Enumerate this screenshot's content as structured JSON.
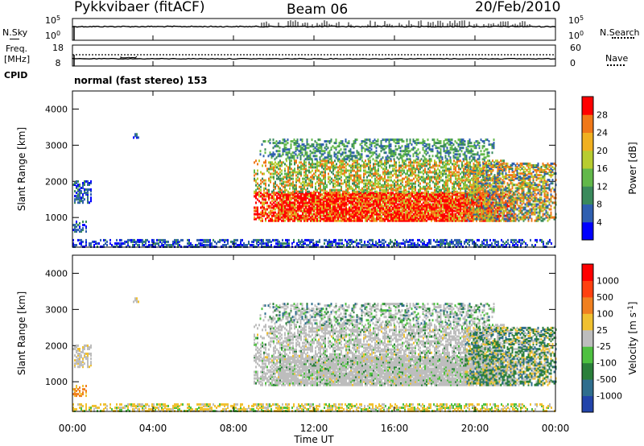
{
  "header": {
    "station": "Pykkvibaer (fitACF)",
    "beam": "Beam 06",
    "date": "20/Feb/2010",
    "nsky_label": "N.Sky",
    "nsearch_label": "N.Search",
    "freq_label": "Freq.",
    "freq_unit": "[MHz]",
    "nave_label": "Nave",
    "cpid_label": "CPID",
    "mode": "normal (fast stereo) 153"
  },
  "chart_data": [
    {
      "type": "line",
      "name": "noise-panel",
      "left_ticks": [
        "10^5",
        "10^0"
      ],
      "right_ticks": [
        "10^5",
        "10^0"
      ],
      "series": [
        {
          "name": "N.Sky"
        },
        {
          "name": "N.Search"
        }
      ]
    },
    {
      "type": "line",
      "name": "freq-panel",
      "left_ticks": [
        18,
        8
      ],
      "right_ticks": [
        60,
        0
      ],
      "series": [
        {
          "name": "Freq."
        },
        {
          "name": "Nave"
        }
      ]
    },
    {
      "type": "heatmap",
      "name": "power-panel",
      "xlabel": "",
      "ylabel": "Slant Range [km]",
      "xlim": [
        "00:00",
        "00:00"
      ],
      "ylim": [
        180,
        4500
      ],
      "yticks": [
        1000,
        2000,
        3000,
        4000
      ],
      "colorbar": {
        "label": "Power [dB]",
        "ticks": [
          4,
          8,
          12,
          16,
          20,
          24,
          28
        ],
        "colors": [
          "#0000ff",
          "#2f5fb0",
          "#3a8a5c",
          "#62b84a",
          "#b8cc30",
          "#f0b020",
          "#f07818",
          "#ff0000"
        ]
      }
    },
    {
      "type": "heatmap",
      "name": "velocity-panel",
      "xlabel": "Time UT",
      "ylabel": "Slant Range [km]",
      "xlim": [
        "00:00",
        "00:00"
      ],
      "ylim": [
        180,
        4500
      ],
      "yticks": [
        1000,
        2000,
        3000,
        4000
      ],
      "xticks": [
        "00:00",
        "04:00",
        "08:00",
        "12:00",
        "16:00",
        "20:00",
        "00:00"
      ],
      "colorbar": {
        "label": "Velocity [m s^-1]",
        "ticks": [
          1000,
          500,
          100,
          25,
          -25,
          -100,
          -500,
          -1000
        ],
        "colors": [
          "#2244aa",
          "#2f6e8e",
          "#2a7f3a",
          "#4ec040",
          "#bdbdbd",
          "#f0c030",
          "#f08020",
          "#ff4010",
          "#ff0000"
        ]
      }
    }
  ]
}
